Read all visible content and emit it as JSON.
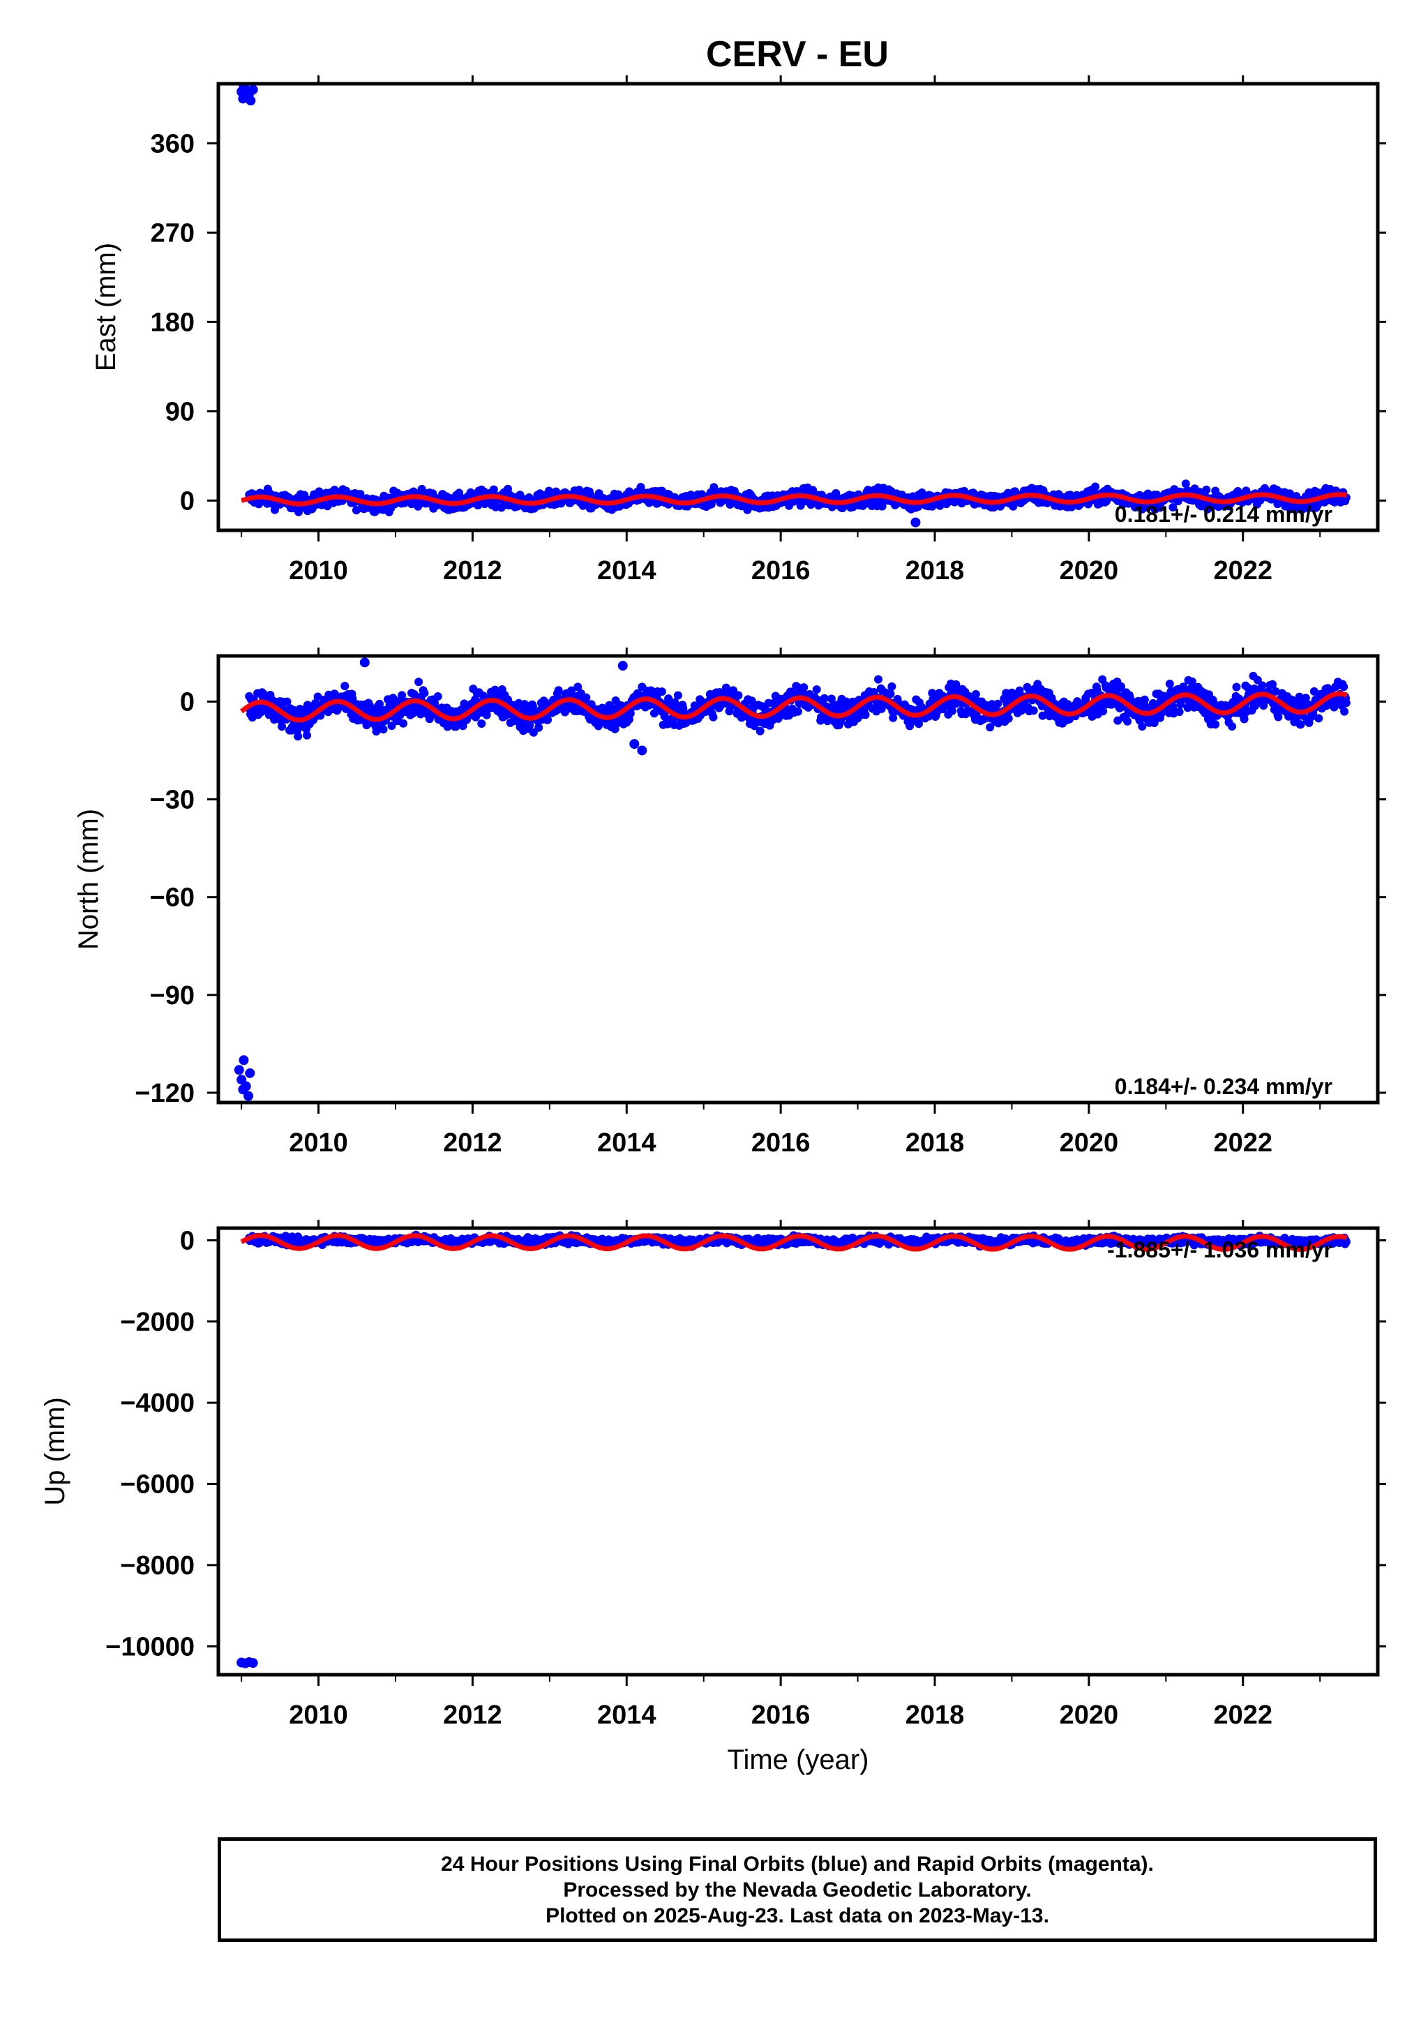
{
  "title": "CERV - EU",
  "colors": {
    "final": "#0000ff",
    "fit": "#ff0000",
    "axis": "#000000"
  },
  "chart_data": [
    {
      "type": "scatter",
      "ylabel": "East (mm)",
      "xlabel": "",
      "xlim": [
        2008.7,
        2023.75
      ],
      "ylim": [
        -30,
        420
      ],
      "yticks": [
        0,
        90,
        180,
        270,
        360
      ],
      "xticks": [
        2010,
        2012,
        2014,
        2016,
        2018,
        2020,
        2022
      ],
      "rate_text": "0.181+/- 0.214 mm/yr",
      "outliers": [
        {
          "x": 2009.0,
          "y": 412
        },
        {
          "x": 2009.02,
          "y": 405
        },
        {
          "x": 2009.05,
          "y": 415
        },
        {
          "x": 2009.08,
          "y": 408
        },
        {
          "x": 2009.1,
          "y": 410
        },
        {
          "x": 2009.12,
          "y": 403
        },
        {
          "x": 2009.15,
          "y": 414
        },
        {
          "x": 2009.03,
          "y": 418
        },
        {
          "x": 2017.75,
          "y": -22
        }
      ],
      "scatter": {
        "x_start": 2009.1,
        "x_end": 2023.35,
        "baseline": 0,
        "trend_per_yr": 0.181,
        "annual_amp": 3,
        "noise": 4,
        "spikes": []
      },
      "fit": {
        "x_start": 2009.0,
        "x_end": 2023.35,
        "offset": 0,
        "trend_per_yr": 0.181,
        "annual_amp": 3.5
      }
    },
    {
      "type": "scatter",
      "ylabel": "North (mm)",
      "xlabel": "",
      "xlim": [
        2008.7,
        2023.75
      ],
      "ylim": [
        -123,
        14
      ],
      "yticks": [
        -120,
        -90,
        -60,
        -30,
        0
      ],
      "xticks": [
        2010,
        2012,
        2014,
        2016,
        2018,
        2020,
        2022
      ],
      "rate_text": "0.184+/- 0.234 mm/yr",
      "outliers": [
        {
          "x": 2008.97,
          "y": -113
        },
        {
          "x": 2009.0,
          "y": -116
        },
        {
          "x": 2009.03,
          "y": -110
        },
        {
          "x": 2009.06,
          "y": -118
        },
        {
          "x": 2009.09,
          "y": -121
        },
        {
          "x": 2009.11,
          "y": -114
        },
        {
          "x": 2009.02,
          "y": -119
        },
        {
          "x": 2014.1,
          "y": -13
        },
        {
          "x": 2014.2,
          "y": -15
        },
        {
          "x": 2013.95,
          "y": 11
        },
        {
          "x": 2010.6,
          "y": 12
        }
      ],
      "scatter": {
        "x_start": 2009.1,
        "x_end": 2023.35,
        "baseline": -3,
        "trend_per_yr": 0.184,
        "annual_amp": 2.5,
        "noise": 2.2,
        "spikes": []
      },
      "fit": {
        "x_start": 2009.0,
        "x_end": 2023.35,
        "offset": -3,
        "trend_per_yr": 0.184,
        "annual_amp": 2.8
      }
    },
    {
      "type": "scatter",
      "ylabel": "Up (mm)",
      "xlabel": "Time (year)",
      "xlim": [
        2008.7,
        2023.75
      ],
      "ylim": [
        -10700,
        300
      ],
      "yticks": [
        -10000,
        -8000,
        -6000,
        -4000,
        -2000,
        0
      ],
      "xticks": [
        2010,
        2012,
        2014,
        2016,
        2018,
        2020,
        2022
      ],
      "rate_text": "-1.885+/- 1.036 mm/yr",
      "outliers": [
        {
          "x": 2009.0,
          "y": -10400
        },
        {
          "x": 2009.05,
          "y": -10420
        },
        {
          "x": 2009.1,
          "y": -10390
        },
        {
          "x": 2009.15,
          "y": -10410
        }
      ],
      "scatter": {
        "x_start": 2009.1,
        "x_end": 2023.35,
        "baseline": 0,
        "trend_per_yr": -1.885,
        "annual_amp": 30,
        "noise": 45,
        "spikes": []
      },
      "fit": {
        "x_start": 2009.0,
        "x_end": 2023.35,
        "offset": -40,
        "trend_per_yr": -1.885,
        "annual_amp": 160
      }
    }
  ],
  "footer": {
    "line1": "24 Hour Positions Using Final Orbits (blue) and Rapid Orbits (magenta).",
    "line2": "Processed by the Nevada Geodetic Laboratory.",
    "line3": "Plotted on 2025-Aug-23. Last data on 2023-May-13."
  }
}
